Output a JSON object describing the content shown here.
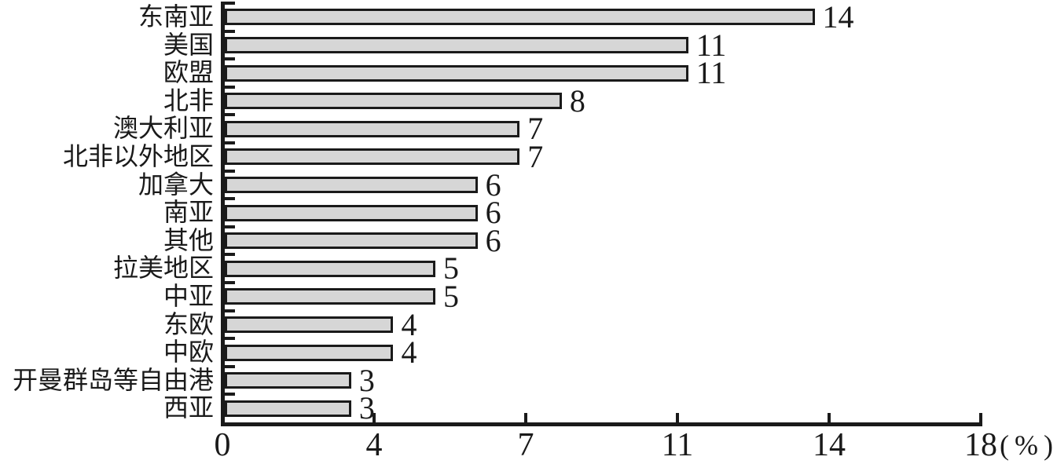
{
  "chart_data": {
    "type": "bar",
    "orientation": "horizontal",
    "title": "",
    "categories": [
      "东南亚",
      "美国",
      "欧盟",
      "北非",
      "澳大利亚",
      "北非以外地区",
      "加拿大",
      "南亚",
      "其他",
      "拉美地区",
      "中亚",
      "东欧",
      "中欧",
      "开曼群岛等自由港",
      "西亚"
    ],
    "values": [
      14,
      11,
      11,
      8,
      7,
      7,
      6,
      6,
      6,
      5,
      5,
      4,
      4,
      3,
      3
    ],
    "value_labels": [
      "14",
      "11",
      "11",
      "8",
      "7",
      "7",
      "6",
      "6",
      "6",
      "5",
      "5",
      "4",
      "4",
      "3",
      "3"
    ],
    "xlabel": "",
    "ylabel": "",
    "x_unit": "(%)",
    "x_tick_labels": [
      "0",
      "4",
      "7",
      "11",
      "14",
      "18"
    ],
    "x_tick_spacing": "uniform",
    "xlim": [
      0,
      18
    ],
    "grid": false,
    "legend": false,
    "colors": {
      "bar_fill": "#d6d6d6",
      "bar_border": "#1a1a1a",
      "axis": "#1a1a1a",
      "text": "#1a1a1a",
      "background": "#ffffff"
    }
  }
}
